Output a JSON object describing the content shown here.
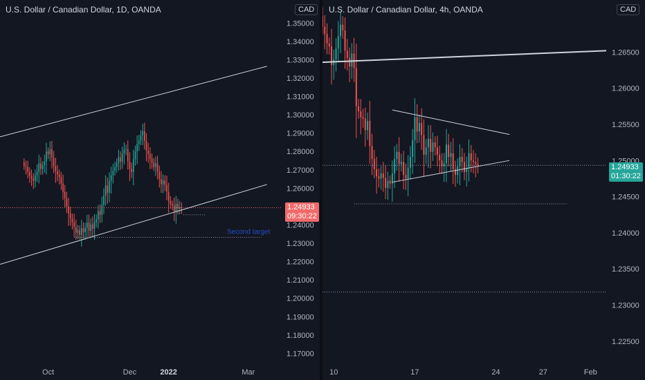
{
  "colors": {
    "background": "#131722",
    "up": "#26a69a",
    "down": "#ef5350",
    "axis_text": "#b2b5be",
    "drawing": "#d1d4dc",
    "target": "#2962ff"
  },
  "chart_data": [
    {
      "type": "candlestick",
      "title": "U.S. Dollar / Canadian Dollar, 1D, OANDA",
      "currency": "CAD",
      "y_ticks": [
        "1.35000",
        "1.34000",
        "1.33000",
        "1.32000",
        "1.31000",
        "1.30000",
        "1.29000",
        "1.28000",
        "1.27000",
        "1.26000",
        "1.25000",
        "1.24000",
        "1.23000",
        "1.22000",
        "1.21000",
        "1.20000",
        "1.19000",
        "1.18000",
        "1.17000"
      ],
      "ylim": [
        1.166,
        1.355
      ],
      "x_ticks": [
        {
          "label": "Oct",
          "bar": 13
        },
        {
          "label": "Dec",
          "bar": 57
        },
        {
          "label": "2022",
          "bar": 78
        },
        {
          "label": "Mar",
          "bar": 121
        }
      ],
      "x_range": [
        -13,
        139
      ],
      "last_price": "1.24933",
      "countdown": "09:30:22",
      "annotations": [
        {
          "text": "Second target"
        }
      ],
      "trendlines": [
        {
          "name": "channel-upper",
          "from": [
            -13,
            1.288
          ],
          "to": [
            131,
            1.3264
          ]
        },
        {
          "name": "channel-lower",
          "from": [
            -13,
            1.2185
          ],
          "to": [
            131,
            1.262
          ]
        },
        {
          "name": "first-target",
          "from": [
            86,
            1.2455
          ],
          "to": [
            98,
            1.2455
          ]
        },
        {
          "name": "second-target",
          "from": [
            27,
            1.2332
          ],
          "to": [
            128,
            1.2332
          ]
        }
      ],
      "closes": [
        1.272,
        1.2715,
        1.2688,
        1.2665,
        1.2652,
        1.264,
        1.267,
        1.2688,
        1.2735,
        1.2705,
        1.2725,
        1.2745,
        1.28,
        1.2785,
        1.2812,
        1.2765,
        1.272,
        1.2692,
        1.2675,
        1.266,
        1.2625,
        1.258,
        1.2545,
        1.25,
        1.2462,
        1.2435,
        1.2415,
        1.2388,
        1.2356,
        1.2372,
        1.2345,
        1.2382,
        1.236,
        1.2385,
        1.2412,
        1.2368,
        1.2402,
        1.2378,
        1.2415,
        1.243,
        1.2475,
        1.2455,
        1.2508,
        1.256,
        1.2615,
        1.2575,
        1.264,
        1.267,
        1.2695,
        1.2715,
        1.2738,
        1.2768,
        1.2745,
        1.279,
        1.281,
        1.2812,
        1.2745,
        1.2705,
        1.2688,
        1.2758,
        1.28,
        1.284,
        1.286,
        1.2888,
        1.291,
        1.2858,
        1.2805,
        1.2785,
        1.276,
        1.274,
        1.2715,
        1.2735,
        1.269,
        1.265,
        1.2622,
        1.2642,
        1.2618,
        1.258,
        1.253,
        1.2515,
        1.2505,
        1.247,
        1.2515,
        1.2488,
        1.2496,
        1.2493
      ],
      "y_highs_note": "wicks approximated"
    },
    {
      "type": "candlestick",
      "title": "U.S. Dollar / Canadian Dollar, 4h, OANDA",
      "currency": "CAD",
      "y_ticks": [
        "1.26500",
        "1.26000",
        "1.25500",
        "1.25000",
        "1.24500",
        "1.24000",
        "1.23500",
        "1.23000",
        "1.22500"
      ],
      "ylim": [
        1.2223,
        1.2703
      ],
      "x_ticks": [
        {
          "label": "10",
          "bar": 5
        },
        {
          "label": "17",
          "bar": 41
        },
        {
          "label": "24",
          "bar": 77
        },
        {
          "label": "27",
          "bar": 98
        },
        {
          "label": "Feb",
          "bar": 119
        }
      ],
      "x_range": [
        0,
        126
      ],
      "last_price": "1.24933",
      "countdown": "01:30:22",
      "trendlines": [
        {
          "name": "resistance",
          "from": [
            0,
            1.2636
          ],
          "to": [
            126,
            1.2652
          ]
        },
        {
          "name": "wedge-upper",
          "from": [
            31,
            1.257
          ],
          "to": [
            83,
            1.2536
          ]
        },
        {
          "name": "wedge-lower",
          "from": [
            31,
            1.247
          ],
          "to": [
            83,
            1.25
          ]
        },
        {
          "name": "target-1",
          "from": [
            14,
            1.244
          ],
          "to": [
            109,
            1.244
          ]
        },
        {
          "name": "target-2",
          "from": [
            0,
            1.2318
          ],
          "to": [
            126,
            1.2318
          ]
        }
      ],
      "closes": [
        1.2685,
        1.2675,
        1.2662,
        1.2658,
        1.2632,
        1.264,
        1.2655,
        1.2672,
        1.2688,
        1.268,
        1.2652,
        1.2642,
        1.263,
        1.2648,
        1.2628,
        1.2575,
        1.2568,
        1.256,
        1.2558,
        1.2542,
        1.2555,
        1.252,
        1.2502,
        1.2488,
        1.2478,
        1.2475,
        1.2482,
        1.2476,
        1.2462,
        1.2472,
        1.2468,
        1.2482,
        1.2502,
        1.2512,
        1.2495,
        1.2498,
        1.248,
        1.2475,
        1.249,
        1.2505,
        1.2528,
        1.256,
        1.254,
        1.2552,
        1.2535,
        1.2508,
        1.2518,
        1.253,
        1.2512,
        1.2525,
        1.2518,
        1.2508,
        1.25,
        1.2492,
        1.2496,
        1.2522,
        1.2505,
        1.251,
        1.2488,
        1.248,
        1.2492,
        1.2505,
        1.2498,
        1.2484,
        1.249,
        1.251,
        1.25,
        1.2498,
        1.2495,
        1.2493
      ]
    }
  ]
}
